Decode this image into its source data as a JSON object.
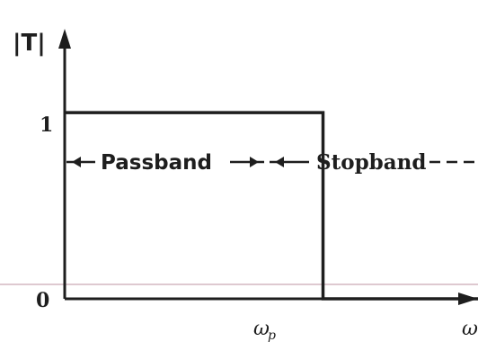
{
  "chart_data": {
    "type": "line",
    "title": "",
    "ylabel": "|T|",
    "xlabel": "ω",
    "x_ticks": [
      {
        "symbol": "ω",
        "subscript": "p",
        "value": 1
      }
    ],
    "y_ticks": [
      "0",
      "1"
    ],
    "ylim": [
      0,
      1.45
    ],
    "xlim": [
      0,
      1.6
    ],
    "series": [
      {
        "points": [
          [
            0,
            1
          ],
          [
            1,
            1
          ],
          [
            1,
            0
          ],
          [
            1.6,
            0
          ]
        ]
      }
    ],
    "bands": {
      "passband_label": "Passband",
      "stopband_label": "Stopband"
    },
    "colors": {
      "ink": "#1e1e1e",
      "faint_line": "#c9a9b5"
    }
  }
}
